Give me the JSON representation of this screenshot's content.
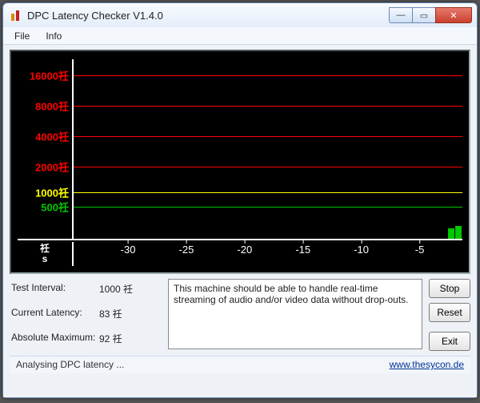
{
  "window": {
    "title": "DPC Latency Checker V1.4.0",
    "icon_colors": [
      "#e08a00",
      "#c02020"
    ]
  },
  "window_buttons": {
    "minimize_glyph": "—",
    "maximize_glyph": "▭",
    "close_glyph": "✕"
  },
  "menu": {
    "items": [
      "File",
      "Info"
    ]
  },
  "chart": {
    "type": "bar",
    "background_color": "#000000",
    "axis_color": "#ffffff",
    "y_ticks": [
      {
        "label": "16000祍",
        "pct": 9,
        "color": "#ff0000",
        "line": true
      },
      {
        "label": "8000祍",
        "pct": 26,
        "color": "#ff0000",
        "line": true
      },
      {
        "label": "4000祍",
        "pct": 43,
        "color": "#ff0000",
        "line": true
      },
      {
        "label": "2000祍",
        "pct": 60,
        "color": "#ff0000",
        "line": true
      },
      {
        "label": "1000祍",
        "pct": 74,
        "color": "#ffff00",
        "line": true
      },
      {
        "label": "500祍",
        "pct": 82,
        "color": "#00c800",
        "line": true
      }
    ],
    "x_corner_unit": "祍",
    "x_corner_time": "s",
    "x_ticks": [
      {
        "label": "-30",
        "pct": 14
      },
      {
        "label": "-25",
        "pct": 29
      },
      {
        "label": "-20",
        "pct": 44
      },
      {
        "label": "-15",
        "pct": 59
      },
      {
        "label": "-10",
        "pct": 74
      },
      {
        "label": "-5",
        "pct": 89
      }
    ],
    "bars": [
      {
        "x_pct": 96.2,
        "h_pct": 6
      },
      {
        "x_pct": 98.2,
        "h_pct": 7
      }
    ],
    "bar_color": "#00c800"
  },
  "stats": {
    "interval_label": "Test Interval:",
    "interval_value": "1000 祍",
    "current_label": "Current Latency:",
    "current_value": "83 祍",
    "max_label": "Absolute Maximum:",
    "max_value": "92 祍"
  },
  "message": "This machine should be able to handle real-time streaming of audio and/or video data without drop-outs.",
  "buttons": {
    "stop": "Stop",
    "reset": "Reset",
    "exit": "Exit"
  },
  "status": {
    "text": "Analysing DPC latency ...",
    "link": "www.thesycon.de"
  }
}
